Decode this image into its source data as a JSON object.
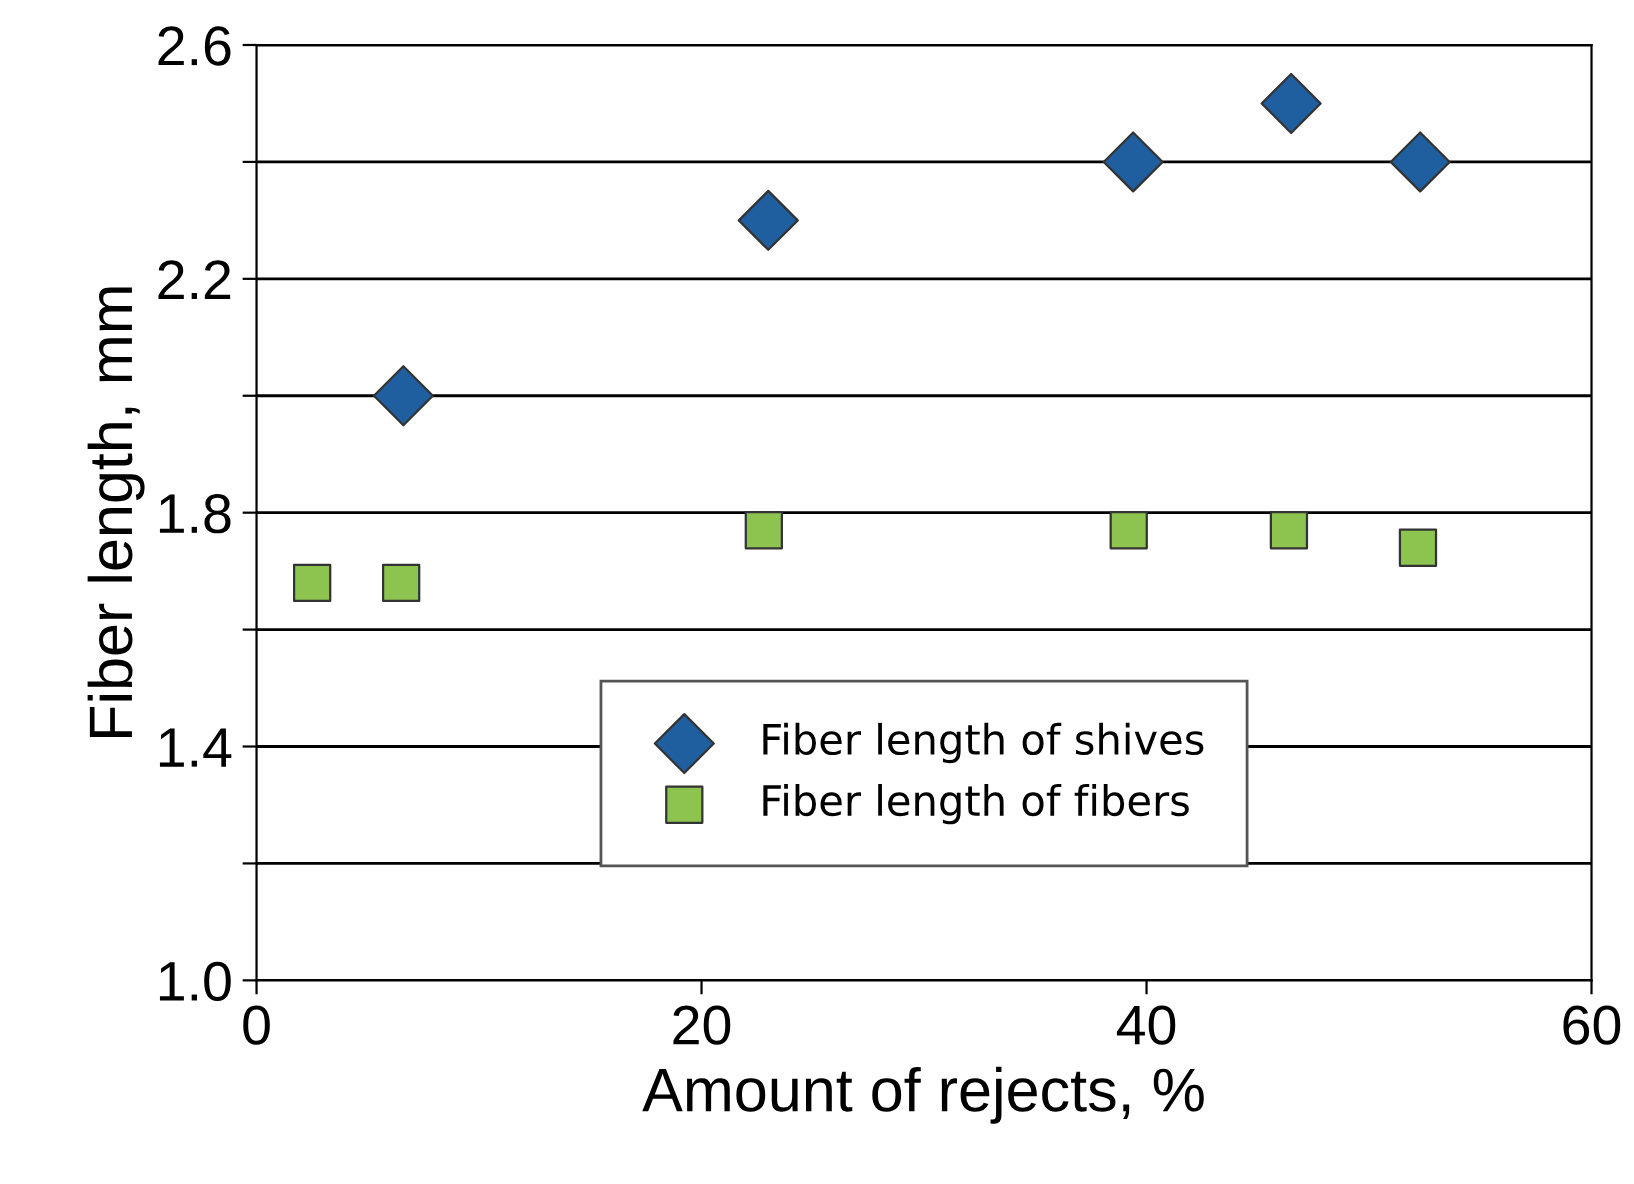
{
  "chart_data": {
    "type": "scatter",
    "xlabel": "Amount of rejects, %",
    "ylabel": "Fiber length, mm",
    "xlim": [
      0,
      60
    ],
    "xticks": [
      0,
      20,
      40,
      60
    ],
    "ylim": [
      1.0,
      2.6
    ],
    "yticks": [
      {
        "value": 1.0,
        "label": "1.0"
      },
      {
        "value": 1.2,
        "label": null
      },
      1.4,
      {
        "value": 1.6,
        "label": null
      },
      1.8,
      {
        "value": 2.0,
        "label": null
      },
      2.2,
      {
        "value": 2.4,
        "label": null
      },
      2.6
    ],
    "grid": "y",
    "legend": "bottom",
    "series": [
      {
        "name": "Fiber length of shives",
        "color": "#1f5fa0",
        "marker": "diamond",
        "x": [
          6.6,
          23.0,
          39.4,
          46.5,
          52.3
        ],
        "values": [
          2.0,
          2.3,
          2.4,
          2.5,
          2.4
        ]
      },
      {
        "name": "Fiber length of fibers",
        "color": "#8dc450",
        "marker": "square",
        "x": [
          2.5,
          6.5,
          22.8,
          39.2,
          46.4,
          52.2
        ],
        "values": [
          1.68,
          1.68,
          1.77,
          1.77,
          1.77,
          1.74
        ]
      }
    ]
  }
}
